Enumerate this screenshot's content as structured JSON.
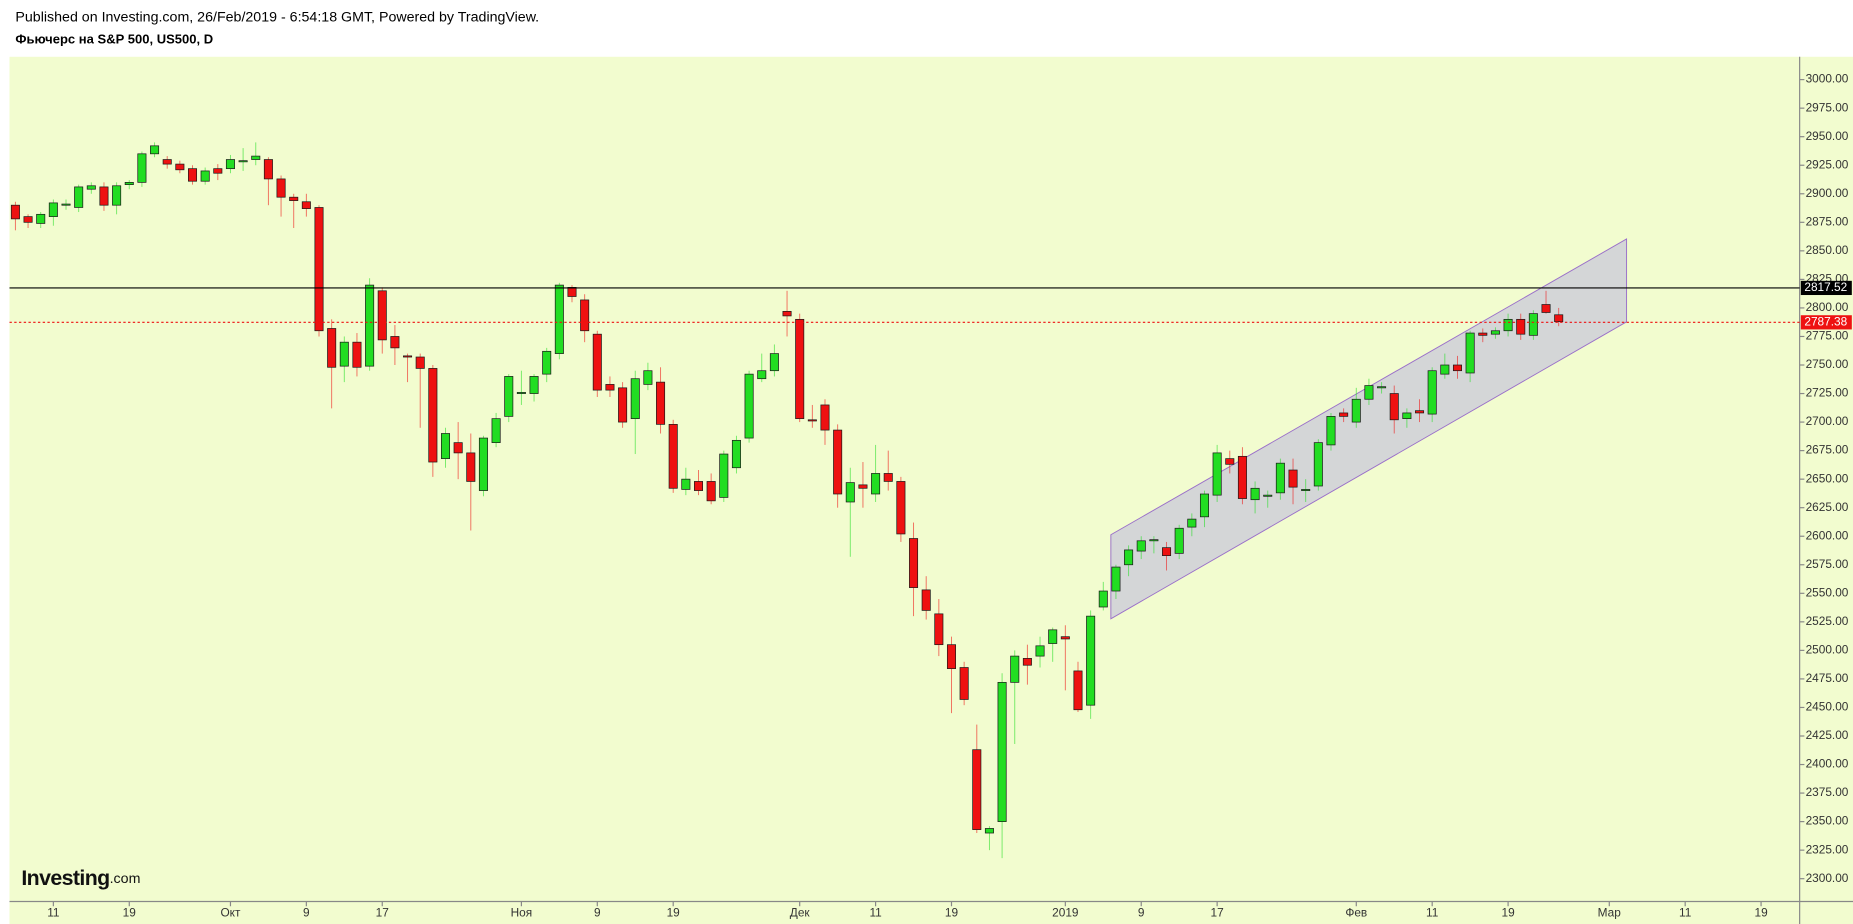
{
  "header": {
    "published": "Published on Investing.com, 26/Feb/2019 - 6:54:18 GMT, Powered by TradingView.",
    "instrument": "Фьючерс на S&P 500, US500, D"
  },
  "logo": [
    "Investing",
    ".com"
  ],
  "chart_data": {
    "type": "candlestick",
    "categories": [
      null,
      null,
      null,
      "11",
      null,
      null,
      null,
      null,
      null,
      "19",
      null,
      null,
      null,
      null,
      null,
      null,
      null,
      "Окт",
      null,
      null,
      null,
      null,
      null,
      "9",
      null,
      null,
      null,
      null,
      null,
      "17",
      null,
      null,
      null,
      null,
      null,
      null,
      null,
      null,
      null,
      null,
      "Ноя",
      null,
      null,
      null,
      null,
      null,
      "9",
      null,
      null,
      null,
      null,
      null,
      "19",
      null,
      null,
      null,
      null,
      null,
      null,
      null,
      null,
      null,
      "Дек",
      null,
      null,
      null,
      null,
      null,
      "11",
      null,
      null,
      null,
      null,
      null,
      "19",
      null,
      null,
      null,
      null,
      null,
      null,
      null,
      null,
      "2019",
      null,
      null,
      null,
      null,
      null,
      "9",
      null,
      null,
      null,
      null,
      null,
      "17",
      null,
      null,
      null,
      null,
      null,
      null,
      null,
      null,
      null,
      null,
      "Фев",
      null,
      null,
      null,
      null,
      null,
      "11",
      null,
      null,
      null,
      null,
      null,
      "19",
      null,
      null,
      null,
      null,
      null,
      null,
      null,
      "Мар",
      null,
      null,
      null,
      null,
      null,
      "11",
      null,
      null,
      null,
      null,
      null,
      "19"
    ],
    "open": [
      2890,
      2880,
      2874,
      2880,
      2890,
      2888,
      2904,
      2906,
      2890,
      2908,
      2910,
      2935,
      2930,
      2926,
      2922,
      2911,
      2922,
      2922,
      2928,
      2930,
      2930,
      2913,
      2897,
      2893,
      2888,
      2782,
      2749,
      2770,
      2749,
      2815,
      2775,
      2758,
      2757,
      2747,
      2668,
      2682,
      2673,
      2640,
      2682,
      2705,
      2725,
      2725,
      2742,
      2760,
      2818,
      2807,
      2777,
      2733,
      2730,
      2703,
      2733,
      2735,
      2698,
      2641,
      2648,
      2648,
      2634,
      2660,
      2686,
      2738,
      2745,
      2797,
      2790,
      2702,
      2715,
      2693,
      2630,
      2645,
      2637,
      2655,
      2648,
      2598,
      2553,
      2532,
      2505,
      2485,
      2413,
      2340,
      2350,
      2472,
      2493,
      2495,
      2506,
      2512,
      2482,
      2452,
      2538,
      2552,
      2575,
      2587,
      2596,
      2590,
      2585,
      2608,
      2617,
      2636,
      2668,
      2670,
      2632,
      2635,
      2638,
      2658,
      2640,
      2644,
      2680,
      2708,
      2700,
      2720,
      2730,
      2725,
      2703,
      2710,
      2707,
      2742,
      2750,
      2743,
      2778,
      2777,
      2780,
      2790,
      2776,
      2803,
      2794,
      null,
      null,
      null,
      null,
      null,
      null,
      null,
      null,
      null,
      null,
      null,
      null,
      null,
      null,
      null,
      null
    ],
    "high": [
      2893,
      2882,
      2884,
      2895,
      2895,
      2908,
      2910,
      2910,
      2910,
      2912,
      2937,
      2945,
      2933,
      2929,
      2925,
      2923,
      2926,
      2934,
      2940,
      2945,
      2932,
      2916,
      2900,
      2900,
      2890,
      2790,
      2775,
      2778,
      2826,
      2818,
      2785,
      2760,
      2760,
      2750,
      2695,
      2700,
      2690,
      2688,
      2708,
      2742,
      2745,
      2742,
      2765,
      2822,
      2820,
      2812,
      2780,
      2740,
      2735,
      2745,
      2752,
      2748,
      2702,
      2660,
      2658,
      2655,
      2675,
      2688,
      2745,
      2760,
      2768,
      2815,
      2795,
      2715,
      2720,
      2698,
      2660,
      2665,
      2680,
      2675,
      2652,
      2612,
      2565,
      2545,
      2512,
      2490,
      2435,
      2346,
      2480,
      2500,
      2505,
      2512,
      2520,
      2522,
      2490,
      2535,
      2560,
      2575,
      2592,
      2600,
      2600,
      2595,
      2610,
      2620,
      2640,
      2680,
      2675,
      2678,
      2648,
      2640,
      2668,
      2668,
      2650,
      2685,
      2708,
      2712,
      2730,
      2738,
      2735,
      2732,
      2712,
      2720,
      2748,
      2760,
      2758,
      2780,
      2782,
      2783,
      2795,
      2795,
      2798,
      2815,
      2800,
      null,
      null,
      null,
      null,
      null,
      null,
      null,
      null,
      null,
      null,
      null,
      null,
      null,
      null,
      null,
      null
    ],
    "low": [
      2868,
      2870,
      2870,
      2872,
      2886,
      2884,
      2900,
      2885,
      2882,
      2904,
      2906,
      2932,
      2922,
      2918,
      2908,
      2908,
      2912,
      2918,
      2920,
      2925,
      2890,
      2880,
      2870,
      2880,
      2775,
      2712,
      2735,
      2740,
      2745,
      2760,
      2750,
      2735,
      2695,
      2652,
      2660,
      2650,
      2605,
      2635,
      2678,
      2700,
      2715,
      2718,
      2735,
      2755,
      2805,
      2770,
      2722,
      2722,
      2695,
      2672,
      2728,
      2690,
      2638,
      2636,
      2636,
      2628,
      2630,
      2655,
      2682,
      2735,
      2740,
      2775,
      2700,
      2695,
      2680,
      2625,
      2582,
      2625,
      2630,
      2640,
      2595,
      2530,
      2527,
      2495,
      2445,
      2452,
      2340,
      2325,
      2318,
      2418,
      2470,
      2485,
      2490,
      2465,
      2446,
      2440,
      2535,
      2545,
      2565,
      2580,
      2585,
      2570,
      2580,
      2600,
      2608,
      2630,
      2655,
      2628,
      2620,
      2625,
      2632,
      2628,
      2630,
      2640,
      2675,
      2700,
      2695,
      2715,
      2725,
      2690,
      2695,
      2700,
      2700,
      2738,
      2738,
      2735,
      2770,
      2773,
      2775,
      2772,
      2772,
      2795,
      2784,
      null,
      null,
      null,
      null,
      null,
      null,
      null,
      null,
      null,
      null,
      null,
      null,
      null,
      null,
      null,
      null
    ],
    "close": [
      2878,
      2875,
      2882,
      2892,
      2891,
      2906,
      2907,
      2890,
      2907,
      2910,
      2935,
      2942,
      2926,
      2921,
      2911,
      2920,
      2918,
      2930,
      2929,
      2933,
      2913,
      2897,
      2894,
      2887,
      2780,
      2748,
      2770,
      2748,
      2820,
      2772,
      2765,
      2757,
      2747,
      2665,
      2690,
      2673,
      2648,
      2686,
      2703,
      2740,
      2726,
      2740,
      2762,
      2820,
      2810,
      2780,
      2728,
      2728,
      2700,
      2738,
      2745,
      2698,
      2642,
      2650,
      2640,
      2631,
      2672,
      2684,
      2742,
      2745,
      2760,
      2793,
      2703,
      2701,
      2693,
      2637,
      2647,
      2642,
      2655,
      2648,
      2602,
      2555,
      2535,
      2505,
      2484,
      2457,
      2343,
      2344,
      2472,
      2495,
      2487,
      2504,
      2518,
      2510,
      2448,
      2530,
      2552,
      2573,
      2588,
      2596,
      2597,
      2583,
      2607,
      2615,
      2637,
      2673,
      2663,
      2633,
      2642,
      2636,
      2664,
      2643,
      2641,
      2682,
      2705,
      2705,
      2720,
      2732,
      2731,
      2702,
      2708,
      2708,
      2745,
      2750,
      2745,
      2778,
      2776,
      2780,
      2790,
      2777,
      2795,
      2796,
      2788,
      null,
      null,
      null,
      null,
      null,
      null,
      null,
      null,
      null,
      null,
      null,
      null,
      null,
      null,
      null,
      null
    ],
    "up_color": "#22dd22",
    "down_color": "#ee1111",
    "ylim": [
      2280,
      3020
    ],
    "yticks": [
      {
        "value": 2300,
        "label": "2300.00"
      },
      {
        "value": 2325,
        "label": "2325.00"
      },
      {
        "value": 2350,
        "label": "2350.00"
      },
      {
        "value": 2375,
        "label": "2375.00"
      },
      {
        "value": 2400,
        "label": "2400.00"
      },
      {
        "value": 2425,
        "label": "2425.00"
      },
      {
        "value": 2450,
        "label": "2450.00"
      },
      {
        "value": 2475,
        "label": "2475.00"
      },
      {
        "value": 2500,
        "label": "2500.00"
      },
      {
        "value": 2525,
        "label": "2525.00"
      },
      {
        "value": 2550,
        "label": "2550.00"
      },
      {
        "value": 2575,
        "label": "2575.00"
      },
      {
        "value": 2600,
        "label": "2600.00"
      },
      {
        "value": 2625,
        "label": "2625.00"
      },
      {
        "value": 2650,
        "label": "2650.00"
      },
      {
        "value": 2675,
        "label": "2675.00"
      },
      {
        "value": 2700,
        "label": "2700.00"
      },
      {
        "value": 2725,
        "label": "2725.00"
      },
      {
        "value": 2750,
        "label": "2750.00"
      },
      {
        "value": 2775,
        "label": "2775.00"
      },
      {
        "value": 2800,
        "label": "2800.00"
      },
      {
        "value": 2825,
        "label": "2825.00"
      },
      {
        "value": 2850,
        "label": "2850.00"
      },
      {
        "value": 2875,
        "label": "2875.00"
      },
      {
        "value": 2900,
        "label": "2900.00"
      },
      {
        "value": 2925,
        "label": "2925.00"
      },
      {
        "value": 2950,
        "label": "2950.00"
      },
      {
        "value": 2975,
        "label": "2975.00"
      },
      {
        "value": 3000,
        "label": "3000.00"
      }
    ],
    "price_lines": [
      {
        "value": 2817.52,
        "color": "#000000",
        "style": "solid"
      },
      {
        "value": 2787.38,
        "color": "#ee1111",
        "style": "dotted"
      }
    ],
    "grid": false
  }
}
